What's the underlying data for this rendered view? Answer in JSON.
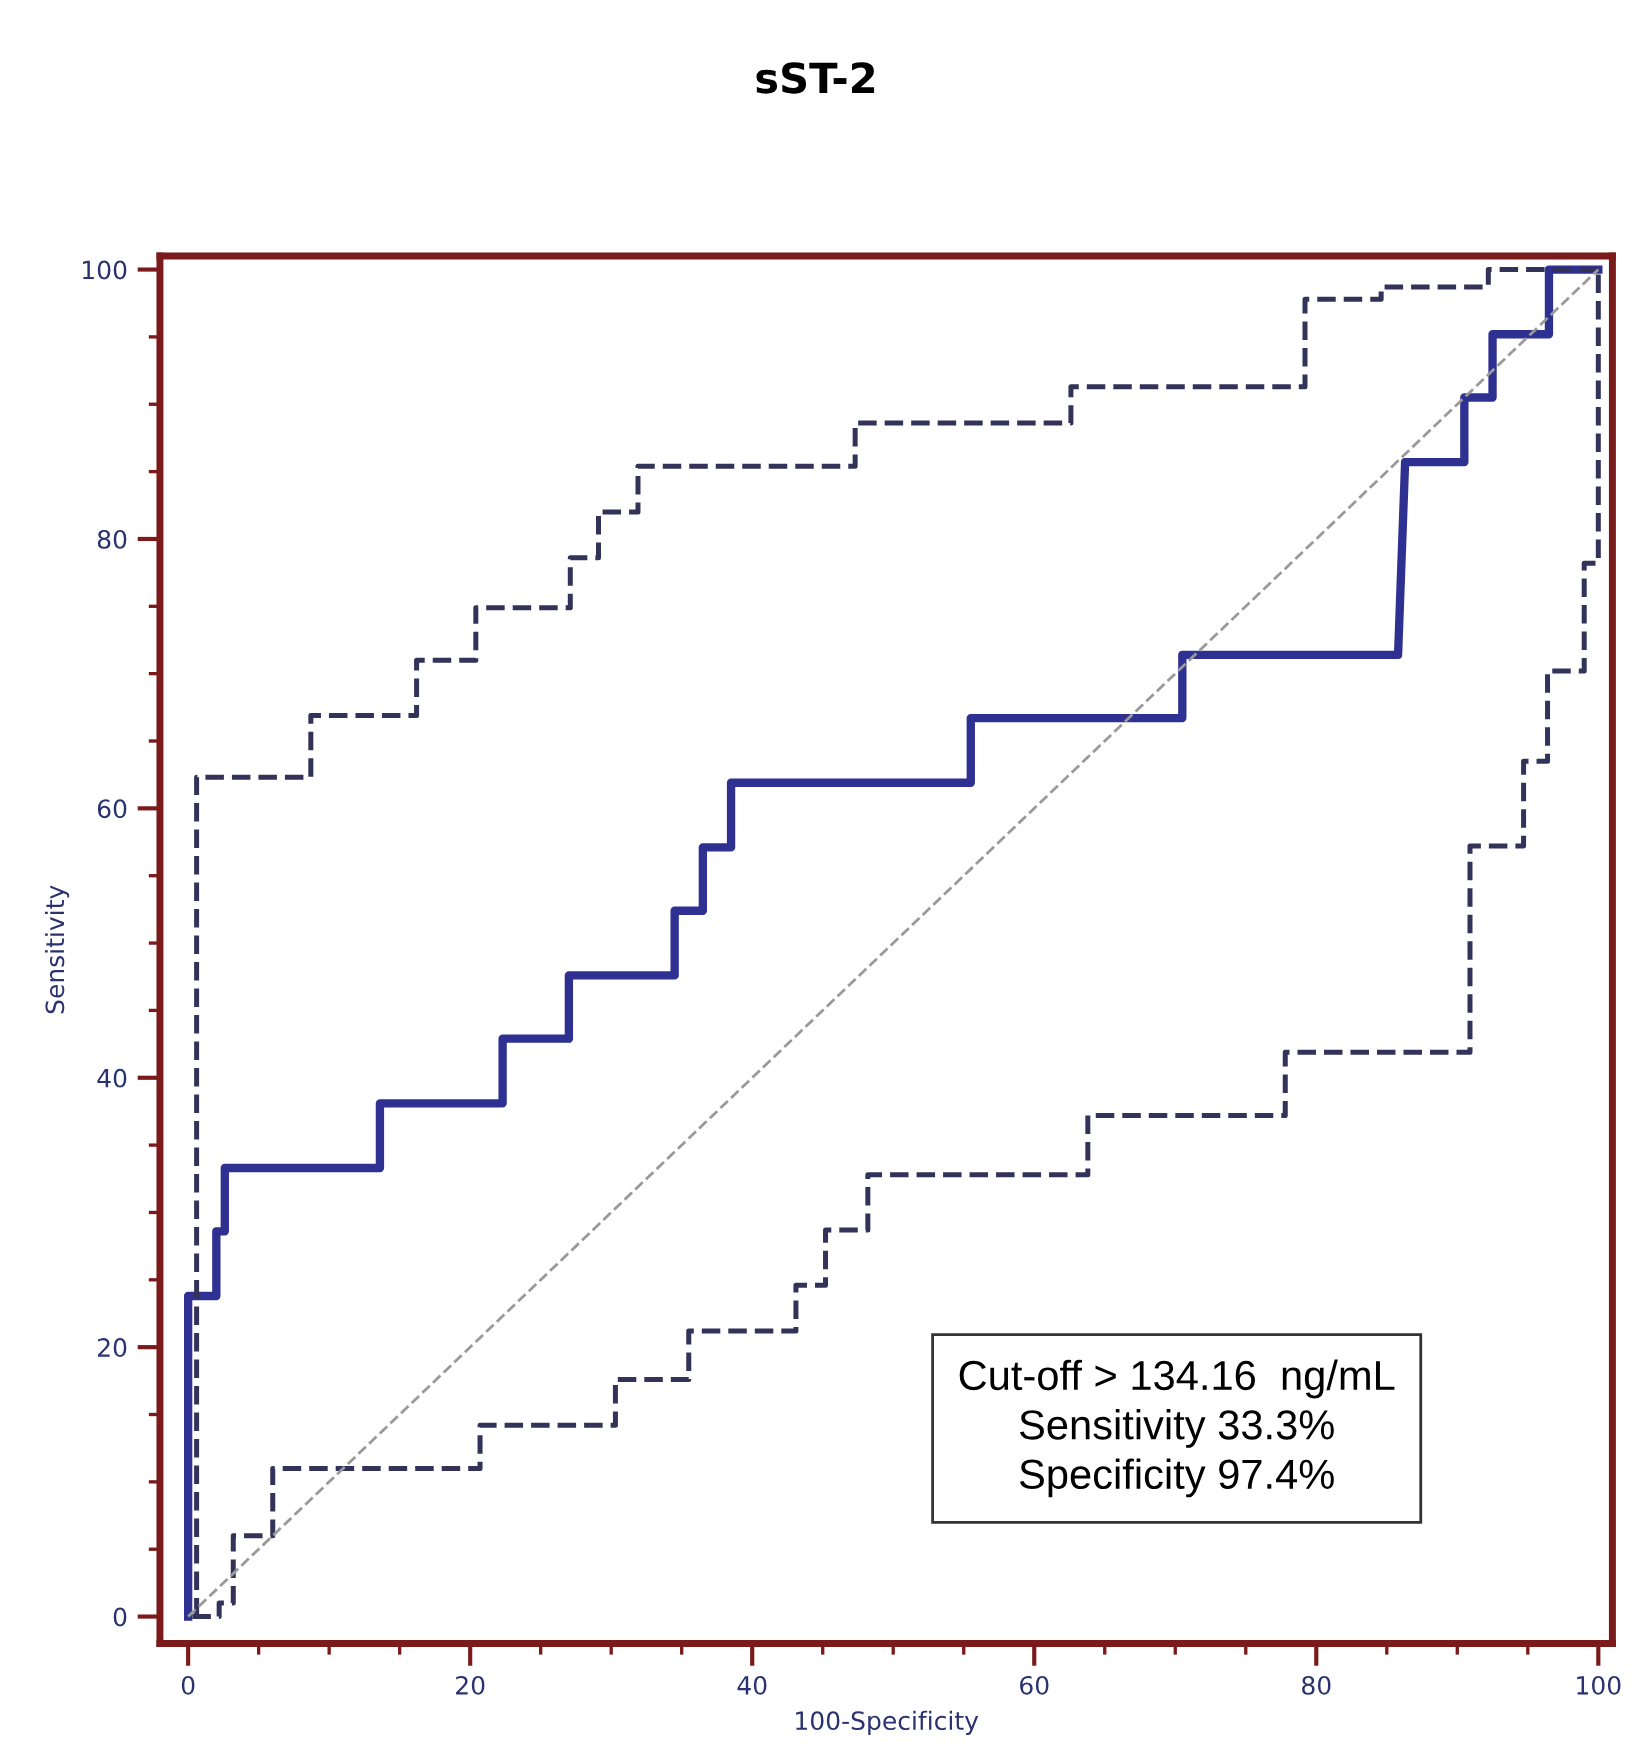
{
  "chart_data": {
    "type": "line",
    "title": "sST-2",
    "xlabel": "100-Specificity",
    "ylabel": "Sensitivity",
    "series": [
      {
        "color": "#2e3192",
        "line_style": "solid",
        "x": [
          0,
          0,
          2,
          2,
          2.6,
          2.6,
          13.6,
          13.6,
          22.3,
          22.3,
          27,
          27,
          34.5,
          34.5,
          36.5,
          36.5,
          38.5,
          38.5,
          55.5,
          55.5,
          70.5,
          70.5,
          85.8,
          86.3,
          90.5,
          90.5,
          92.5,
          92.5,
          96.5,
          96.5,
          100
        ],
        "values": [
          0,
          23.8,
          23.8,
          28.6,
          28.6,
          33.3,
          33.3,
          38.1,
          38.1,
          42.9,
          42.9,
          47.6,
          47.6,
          52.4,
          52.4,
          57.1,
          57.1,
          61.9,
          61.9,
          66.7,
          66.7,
          71.4,
          71.4,
          85.7,
          85.7,
          90.5,
          90.5,
          95.2,
          95.2,
          100,
          100
        ]
      },
      {
        "color": "#33335a",
        "line_style": "dashed",
        "x": [
          0.6,
          0.6,
          8.7,
          8.7,
          16.2,
          16.2,
          20.4,
          20.4,
          27.1,
          27.1,
          29.1,
          29.1,
          31.9,
          31.9,
          47.3,
          47.3,
          62.6,
          62.6,
          79.2,
          79.2,
          84.6,
          84.6,
          92.2,
          92.2,
          100
        ],
        "values": [
          0,
          62.3,
          62.3,
          66.9,
          66.9,
          71,
          71,
          74.9,
          74.9,
          78.6,
          78.6,
          82,
          82,
          85.4,
          85.4,
          88.6,
          88.6,
          91.3,
          91.3,
          97.8,
          97.8,
          98.7,
          98.7,
          100,
          100
        ]
      },
      {
        "color": "#33335a",
        "line_style": "dashed",
        "x": [
          0.3,
          2.2,
          2.2,
          3.2,
          3.2,
          6,
          6,
          20.7,
          20.7,
          30.3,
          30.3,
          35.5,
          35.5,
          43.1,
          43.1,
          45.2,
          45.2,
          48.2,
          48.2,
          63.8,
          63.8,
          77.8,
          77.8,
          90.9,
          90.9,
          94.7,
          94.7,
          96.4,
          96.4,
          99,
          99,
          100,
          100
        ],
        "values": [
          0,
          0,
          1,
          1,
          6,
          6,
          11,
          11,
          14.2,
          14.2,
          17.6,
          17.6,
          21.2,
          21.2,
          24.6,
          24.6,
          28.7,
          28.7,
          32.8,
          32.8,
          37.2,
          37.2,
          41.9,
          41.9,
          57.2,
          57.2,
          63.5,
          63.5,
          70.2,
          70.2,
          78.2,
          78.2,
          100
        ]
      },
      {
        "color": "#9a9a9a",
        "line_style": "dashed",
        "x": [
          0,
          100
        ],
        "values": [
          0,
          100
        ]
      }
    ],
    "xlim": [
      -2,
      101
    ],
    "ylim": [
      -2,
      101
    ],
    "xticks": [
      0,
      {
        "value": 5,
        "label": null
      },
      {
        "value": 10,
        "label": null
      },
      {
        "value": 15,
        "label": null
      },
      20,
      {
        "value": 25,
        "label": null
      },
      {
        "value": 30,
        "label": null
      },
      {
        "value": 35,
        "label": null
      },
      40,
      {
        "value": 45,
        "label": null
      },
      {
        "value": 50,
        "label": null
      },
      {
        "value": 55,
        "label": null
      },
      60,
      {
        "value": 65,
        "label": null
      },
      {
        "value": 70,
        "label": null
      },
      {
        "value": 75,
        "label": null
      },
      80,
      {
        "value": 85,
        "label": null
      },
      {
        "value": 90,
        "label": null
      },
      {
        "value": 95,
        "label": null
      },
      100
    ],
    "yticks": [
      0,
      {
        "value": 5,
        "label": null
      },
      {
        "value": 10,
        "label": null
      },
      {
        "value": 15,
        "label": null
      },
      20,
      {
        "value": 25,
        "label": null
      },
      {
        "value": 30,
        "label": null
      },
      {
        "value": 35,
        "label": null
      },
      40,
      {
        "value": 45,
        "label": null
      },
      {
        "value": 50,
        "label": null
      },
      {
        "value": 55,
        "label": null
      },
      60,
      {
        "value": 65,
        "label": null
      },
      {
        "value": 70,
        "label": null
      },
      {
        "value": 75,
        "label": null
      },
      80,
      {
        "value": 85,
        "label": null
      },
      {
        "value": 90,
        "label": null
      },
      {
        "value": 95,
        "label": null
      },
      100
    ],
    "grid": false,
    "legend": false,
    "annotations": [
      "Cut-off > 134.16  ng/mL\nSensitivity 33.3%\nSpecificity 97.4%"
    ]
  }
}
